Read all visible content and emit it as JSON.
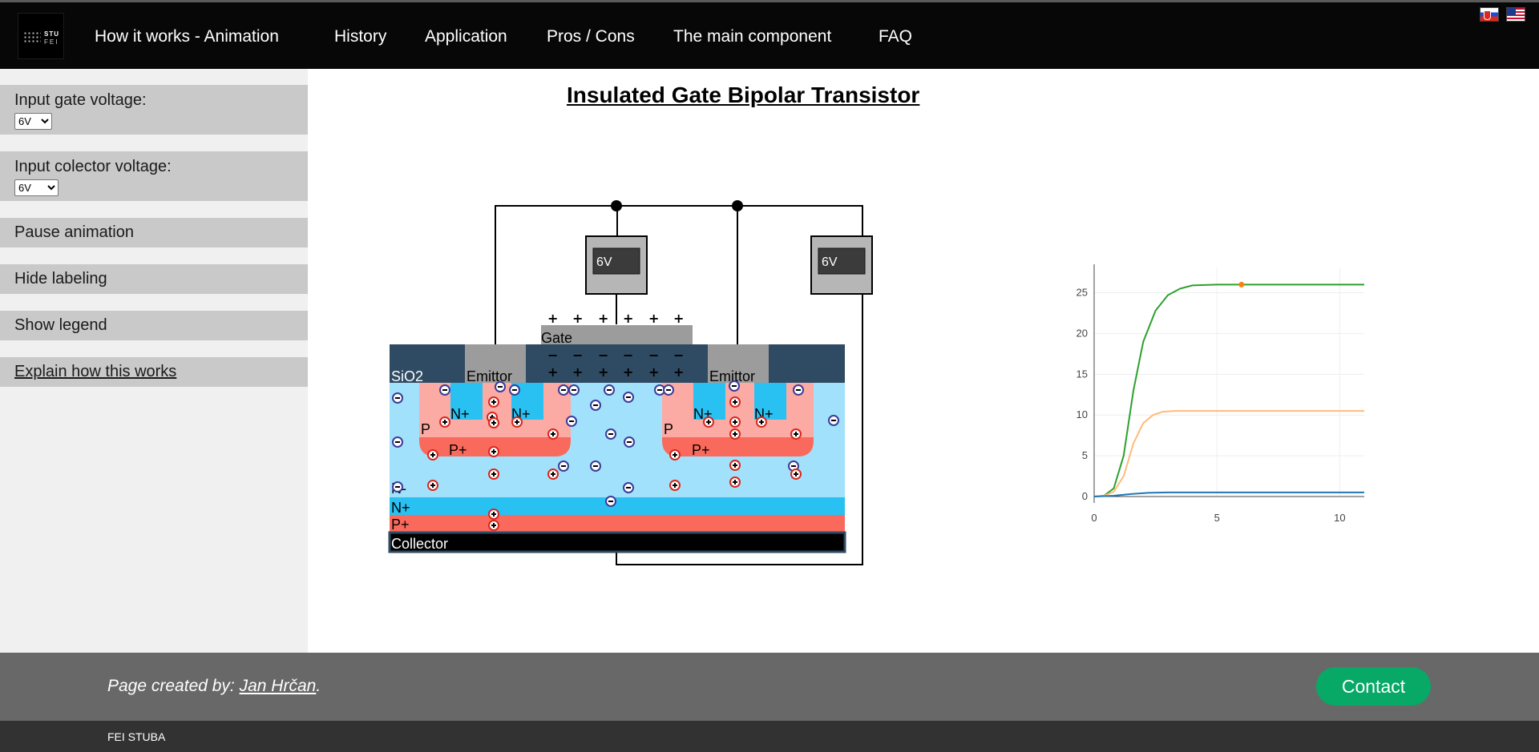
{
  "nav": {
    "logo_line1": "STU",
    "logo_line2": "FEI",
    "items": [
      "How it works - Animation",
      "History",
      "Application",
      "Pros / Cons",
      "The main component",
      "FAQ"
    ]
  },
  "sidebar": {
    "gate_label": "Input gate voltage:",
    "gate_value": "6V",
    "collector_label": "Input colector voltage:",
    "collector_value": "6V",
    "pause_label": "Pause animation",
    "labeling_label": "Hide labeling",
    "legend_label": "Show legend",
    "explain_label": "Explain how this works"
  },
  "main": {
    "title": "Insulated Gate Bipolar Transistor"
  },
  "diagram": {
    "gate_meter": "6V",
    "collector_meter": "6V",
    "labels": {
      "gate": "Gate",
      "sio2": "SiO2",
      "emitter_left": "Emittor",
      "emitter_right": "Emittor",
      "nplus": "N+",
      "p": "P",
      "pplus": "P+",
      "nminus": "N-",
      "nplus_buffer": "N+",
      "pplus_bottom": "P+",
      "collector": "Collector"
    }
  },
  "chart_data": {
    "type": "line",
    "xticks": [
      0,
      5,
      10
    ],
    "yticks": [
      0,
      5,
      10,
      15,
      20,
      25
    ],
    "xlim": [
      0,
      11
    ],
    "ylim": [
      0,
      28
    ],
    "series": [
      {
        "color": "#2ca02c",
        "x": [
          0,
          0.4,
          0.8,
          1.2,
          1.6,
          2.0,
          2.5,
          3.0,
          3.5,
          4.0,
          5.0,
          6.0,
          7.0,
          9.0,
          11.0
        ],
        "y": [
          0,
          0.1,
          1.0,
          5.0,
          13.0,
          19.0,
          22.8,
          24.7,
          25.5,
          25.9,
          26.0,
          26.0,
          26.0,
          26.0,
          26.0
        ]
      },
      {
        "color": "#ffbb78",
        "x": [
          0,
          0.4,
          0.8,
          1.2,
          1.6,
          2.0,
          2.4,
          2.8,
          3.3,
          4.0,
          5.0,
          7.0,
          11.0
        ],
        "y": [
          0,
          0.1,
          0.6,
          2.5,
          6.5,
          9.0,
          10.0,
          10.4,
          10.5,
          10.5,
          10.5,
          10.5,
          10.5
        ]
      },
      {
        "color": "#1f77b4",
        "x": [
          0,
          0.8,
          1.5,
          2.2,
          3.0,
          5.0,
          11.0
        ],
        "y": [
          0,
          0.1,
          0.3,
          0.45,
          0.5,
          0.5,
          0.5
        ]
      }
    ],
    "marker": {
      "x": 6.0,
      "y": 26.0,
      "color": "#ff7f0e"
    }
  },
  "footer": {
    "credit_prefix": "Page created by: ",
    "author": "Jan Hrčan",
    "credit_suffix": ".",
    "contact_label": "Contact",
    "org": "FEI STUBA"
  },
  "colors": {
    "navbar": "#070707",
    "contact": "#08a867",
    "footer": "#686868",
    "subfooter": "#323232"
  }
}
